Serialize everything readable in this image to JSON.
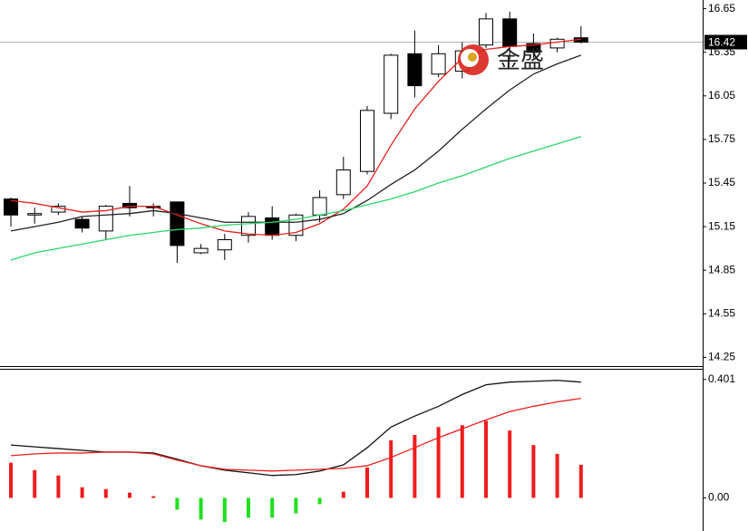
{
  "chart_data": [
    {
      "type": "candlestick",
      "open": [
        15.34,
        15.23,
        15.25,
        15.2,
        15.12,
        15.31,
        15.29,
        15.32,
        14.97,
        14.99,
        15.09,
        15.21,
        15.09,
        15.23,
        15.37,
        15.53,
        15.93,
        16.34,
        16.2,
        16.22,
        16.4,
        16.58,
        16.41,
        16.38,
        16.45
      ],
      "high": [
        15.35,
        15.28,
        15.31,
        15.22,
        15.3,
        15.43,
        15.31,
        15.32,
        15.03,
        15.1,
        15.25,
        15.29,
        15.24,
        15.4,
        15.63,
        15.98,
        16.34,
        16.5,
        16.4,
        16.42,
        16.62,
        16.63,
        16.48,
        16.45,
        16.53
      ],
      "low": [
        15.15,
        15.17,
        15.23,
        15.11,
        15.06,
        15.22,
        15.22,
        14.9,
        14.96,
        14.92,
        15.04,
        15.06,
        15.05,
        15.18,
        15.34,
        15.51,
        15.89,
        16.04,
        16.18,
        16.17,
        16.38,
        16.3,
        16.31,
        16.35,
        16.41
      ],
      "close": [
        15.23,
        15.24,
        15.29,
        15.14,
        15.29,
        15.28,
        15.28,
        15.02,
        15.0,
        15.06,
        15.22,
        15.09,
        15.23,
        15.35,
        15.54,
        15.95,
        16.33,
        16.12,
        16.34,
        16.36,
        16.58,
        16.39,
        16.35,
        16.44,
        16.42
      ],
      "up_color": "#ffffff",
      "down_color": "#000000",
      "series": [
        {
          "color": "#e8201c",
          "values": [
            15.33,
            15.31,
            15.28,
            15.25,
            15.26,
            15.29,
            15.29,
            15.23,
            15.17,
            15.12,
            15.1,
            15.09,
            15.11,
            15.17,
            15.27,
            15.43,
            15.71,
            15.96,
            16.15,
            16.31,
            16.37,
            16.39,
            16.4,
            16.42,
            16.44
          ]
        },
        {
          "color": "#222222",
          "values": [
            15.12,
            15.15,
            15.18,
            15.22,
            15.23,
            15.24,
            15.26,
            15.24,
            15.21,
            15.18,
            15.18,
            15.18,
            15.18,
            15.2,
            15.24,
            15.33,
            15.44,
            15.54,
            15.67,
            15.82,
            15.96,
            16.09,
            16.2,
            16.27,
            16.33
          ]
        },
        {
          "color": "#2bd66a",
          "values": [
            14.92,
            14.97,
            15.0,
            15.03,
            15.06,
            15.09,
            15.11,
            15.13,
            15.14,
            15.16,
            15.17,
            15.18,
            15.2,
            15.23,
            15.26,
            15.3,
            15.34,
            15.39,
            15.45,
            15.5,
            15.56,
            15.62,
            15.67,
            15.72,
            15.77
          ]
        }
      ],
      "last_price": 16.42,
      "watermark": "金盛",
      "ylim": [
        14.19,
        16.71
      ],
      "yticks": [
        16.65,
        16.35,
        16.05,
        15.75,
        15.45,
        15.15,
        14.85,
        14.55,
        14.25
      ]
    },
    {
      "type": "macd",
      "histogram": [
        0.119,
        0.094,
        0.076,
        0.036,
        0.03,
        0.018,
        0.006,
        -0.04,
        -0.073,
        -0.082,
        -0.067,
        -0.067,
        -0.052,
        -0.021,
        0.021,
        0.103,
        0.195,
        0.213,
        0.24,
        0.246,
        0.261,
        0.228,
        0.179,
        0.149,
        0.112
      ],
      "up_color": "#ee1c1c",
      "down_color": "#1ee01e",
      "series": [
        {
          "color": "#111111",
          "values": [
            0.179,
            0.173,
            0.167,
            0.161,
            0.155,
            0.155,
            0.152,
            0.131,
            0.109,
            0.094,
            0.085,
            0.076,
            0.079,
            0.091,
            0.112,
            0.17,
            0.24,
            0.277,
            0.31,
            0.35,
            0.383,
            0.392,
            0.395,
            0.398,
            0.392
          ]
        },
        {
          "color": "#ee2020",
          "values": [
            0.143,
            0.149,
            0.152,
            0.152,
            0.155,
            0.155,
            0.149,
            0.128,
            0.109,
            0.097,
            0.094,
            0.091,
            0.094,
            0.097,
            0.1,
            0.109,
            0.137,
            0.17,
            0.204,
            0.234,
            0.264,
            0.292,
            0.31,
            0.325,
            0.337
          ]
        }
      ],
      "ylim": [
        -0.112,
        0.434
      ],
      "yticks": [
        0.401,
        {
          "value": 0,
          "label": "0.00"
        }
      ]
    }
  ]
}
